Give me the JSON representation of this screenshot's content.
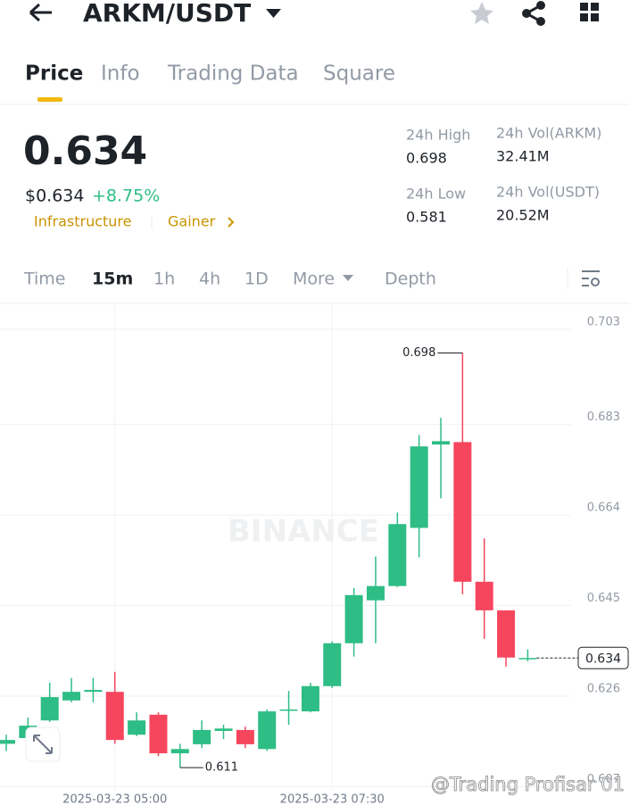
{
  "header": {
    "pair": "ARKM/USDT"
  },
  "tabs": [
    "Price",
    "Info",
    "Trading Data",
    "Square"
  ],
  "summary": {
    "price": "0.634",
    "price_usd": "$0.634",
    "change": "+8.75%",
    "tags": [
      "Infrastructure",
      "Gainer"
    ],
    "stats": [
      {
        "label": "24h High",
        "value": "0.698"
      },
      {
        "label": "24h Vol(ARKM)",
        "value": "32.41M"
      },
      {
        "label": "24h Low",
        "value": "0.581"
      },
      {
        "label": "24h Vol(USDT)",
        "value": "20.52M"
      }
    ]
  },
  "intervals": [
    "Time",
    "15m",
    "1h",
    "4h",
    "1D",
    "More",
    "Depth"
  ],
  "watermark": "BINANCE",
  "credit": "@Trading Profisar 01",
  "chart_data": {
    "type": "candlestick",
    "categories": [
      null,
      null,
      null,
      null,
      null,
      "2025-03-23 05:00",
      null,
      null,
      null,
      null,
      null,
      null,
      null,
      null,
      null,
      "2025-03-23 07:30",
      null,
      null,
      null,
      null,
      null,
      null,
      null,
      null,
      null
    ],
    "open": [
      0.616,
      0.6172,
      0.6209,
      0.6251,
      0.6269,
      0.6269,
      0.6179,
      0.6221,
      0.614,
      0.6159,
      0.6187,
      0.6189,
      0.6149,
      0.623,
      0.6228,
      0.6281,
      0.6371,
      0.6461,
      0.6491,
      0.6613,
      0.6788,
      0.6793,
      0.65,
      0.644,
      0.6338
    ],
    "high": [
      0.6179,
      0.6215,
      0.6288,
      0.6298,
      0.6298,
      0.6311,
      0.6226,
      0.6226,
      0.616,
      0.6209,
      0.62,
      0.6196,
      0.6232,
      0.6271,
      0.6288,
      0.6375,
      0.6487,
      0.6553,
      0.6645,
      0.6808,
      0.6844,
      0.698,
      0.6591,
      0.644,
      0.6358
    ],
    "low": [
      0.6145,
      0.6164,
      0.6206,
      0.6247,
      0.6247,
      0.616,
      0.6176,
      0.6134,
      0.611,
      0.6151,
      0.617,
      0.6151,
      0.6145,
      0.62,
      0.6226,
      0.6277,
      0.6343,
      0.6371,
      0.6489,
      0.6551,
      0.6675,
      0.6474,
      0.638,
      0.6322,
      0.6333
    ],
    "close": [
      0.6168,
      0.6198,
      0.6258,
      0.6269,
      0.6273,
      0.6168,
      0.6209,
      0.614,
      0.6149,
      0.6189,
      0.6192,
      0.6159,
      0.6228,
      0.6232,
      0.6281,
      0.6371,
      0.6472,
      0.6491,
      0.6621,
      0.6784,
      0.6795,
      0.65,
      0.644,
      0.6341,
      0.634
    ],
    "up_color": "#2ebd85",
    "down_color": "#f6465d",
    "ylim": [
      0.6069,
      0.7084
    ],
    "yticks": [
      0.703,
      0.683,
      0.664,
      0.645,
      0.626,
      0.607
    ],
    "grid": true
  }
}
